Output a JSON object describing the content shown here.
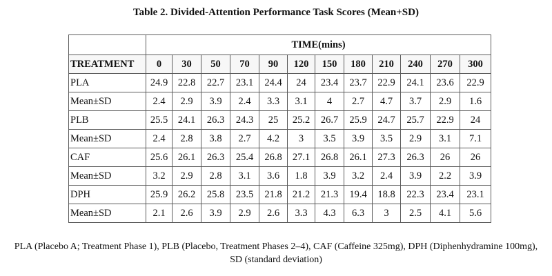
{
  "caption": "Table 2. Divided-Attention Performance Task Scores (Mean+SD)",
  "table": {
    "time_header": "TIME(mins)",
    "treatment_header": "TREATMENT",
    "time_points": [
      "0",
      "30",
      "50",
      "70",
      "90",
      "120",
      "150",
      "180",
      "210",
      "240",
      "270",
      "300"
    ],
    "rows": [
      {
        "label": "PLA",
        "values": [
          "24.9",
          "22.8",
          "22.7",
          "23.1",
          "24.4",
          "24",
          "23.4",
          "23.7",
          "22.9",
          "24.1",
          "23.6",
          "22.9"
        ]
      },
      {
        "label": "Mean±SD",
        "values": [
          "2.4",
          "2.9",
          "3.9",
          "2.4",
          "3.3",
          "3.1",
          "4",
          "2.7",
          "4.7",
          "3.7",
          "2.9",
          "1.6"
        ]
      },
      {
        "label": "PLB",
        "values": [
          "25.5",
          "24.1",
          "26.3",
          "24.3",
          "25",
          "25.2",
          "26.7",
          "25.9",
          "24.7",
          "25.7",
          "22.9",
          "24"
        ]
      },
      {
        "label": "Mean±SD",
        "values": [
          "2.4",
          "2.8",
          "3.8",
          "2.7",
          "4.2",
          "3",
          "3.5",
          "3.9",
          "3.5",
          "2.9",
          "3.1",
          "7.1"
        ]
      },
      {
        "label": "CAF",
        "values": [
          "25.6",
          "26.1",
          "26.3",
          "25.4",
          "26.8",
          "27.1",
          "26.8",
          "26.1",
          "27.3",
          "26.3",
          "26",
          "26"
        ]
      },
      {
        "label": "Mean±SD",
        "values": [
          "3.2",
          "2.9",
          "2.8",
          "3.1",
          "3.6",
          "1.8",
          "3.9",
          "3.2",
          "2.4",
          "3.9",
          "2.2",
          "3.9"
        ]
      },
      {
        "label": "DPH",
        "values": [
          "25.9",
          "26.2",
          "25.8",
          "23.5",
          "21.8",
          "21.2",
          "21.3",
          "19.4",
          "18.8",
          "22.3",
          "23.4",
          "23.1"
        ]
      },
      {
        "label": "Mean±SD",
        "values": [
          "2.1",
          "2.6",
          "3.9",
          "2.9",
          "2.6",
          "3.3",
          "4.3",
          "6.3",
          "3",
          "2.5",
          "4.1",
          "5.6"
        ]
      }
    ]
  },
  "footnote": {
    "line1": "PLA (Placebo A; Treatment Phase 1), PLB (Placebo, Treatment Phases 2–4), CAF (Caffeine 325mg), DPH (Diphenhydramine 100mg),",
    "line2": "SD (standard deviation)"
  }
}
